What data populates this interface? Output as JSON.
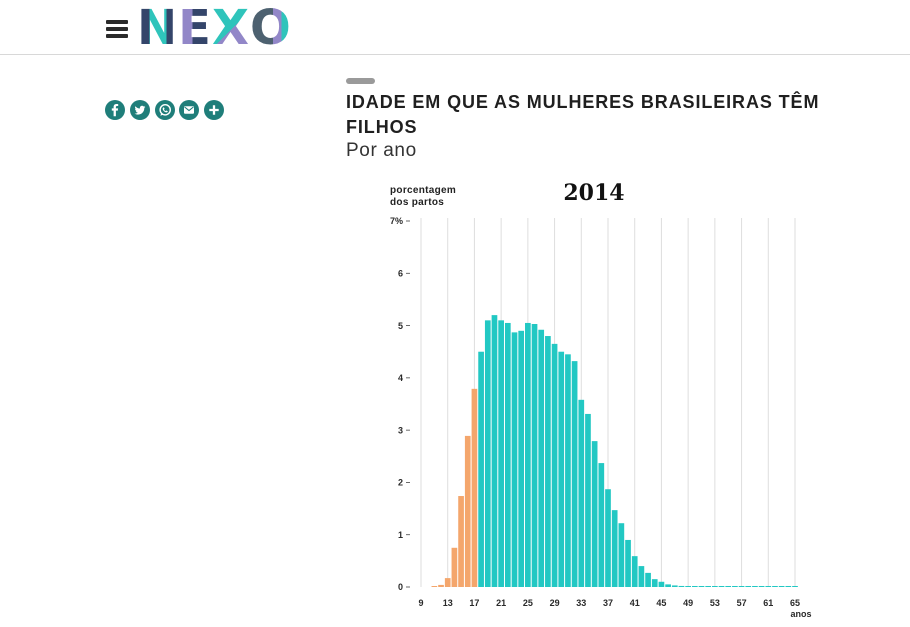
{
  "theme": {
    "share_button": "#1f7e7a",
    "tag": "#9a9a9a",
    "logo_navy": "#34456a",
    "logo_teal": "#2fc4bb",
    "logo_purple": "#9287c8",
    "logo_slate": "#4d6170",
    "menu_icon": "#2b2b2b",
    "divider": "#d8d8d8"
  },
  "header": {
    "menu_icon": "hamburger-menu-icon",
    "logo_letters": [
      "N",
      "E",
      "X",
      "O"
    ]
  },
  "share": {
    "buttons": [
      {
        "icon": "facebook-icon"
      },
      {
        "icon": "twitter-icon"
      },
      {
        "icon": "whatsapp-icon"
      },
      {
        "icon": "email-icon"
      },
      {
        "icon": "plus-icon"
      }
    ]
  },
  "article": {
    "title": "IDADE EM QUE AS MULHERES BRASILEIRAS TÊM FILHOS",
    "subtitle": "Por ano"
  },
  "chart_data": {
    "type": "bar",
    "title": "2014",
    "ylabel": [
      "porcentagem",
      "dos partos"
    ],
    "xlabel": "anos",
    "ylim": [
      0,
      7
    ],
    "xlim": [
      9,
      65
    ],
    "y_ticks": [
      0,
      1,
      2,
      3,
      4,
      5,
      6,
      7
    ],
    "y_tick_labels": [
      "0",
      "1",
      "2",
      "3",
      "4",
      "5",
      "6",
      "7%"
    ],
    "x_ticks": [
      9,
      13,
      17,
      21,
      25,
      29,
      33,
      37,
      41,
      45,
      49,
      53,
      57,
      61,
      65
    ],
    "grid": "vertical",
    "series": [
      {
        "color": "#f4a66c",
        "x": [
          11,
          12,
          13,
          14,
          15,
          16,
          17
        ],
        "values": [
          0.01,
          0.04,
          0.17,
          0.75,
          1.74,
          2.89,
          3.79
        ]
      },
      {
        "color": "#22c8c3",
        "x": [
          18,
          19,
          20,
          21,
          22,
          23,
          24,
          25,
          26,
          27,
          28,
          29,
          30,
          31,
          32,
          33,
          34,
          35,
          36,
          37,
          38,
          39,
          40,
          41,
          42,
          43,
          44,
          45,
          46,
          47,
          48,
          49,
          50,
          51,
          52,
          53,
          54,
          55,
          56,
          57,
          58,
          59,
          60,
          61,
          62,
          63,
          64,
          65
        ],
        "values": [
          4.5,
          5.1,
          5.2,
          5.1,
          5.05,
          4.87,
          4.9,
          5.05,
          5.03,
          4.92,
          4.8,
          4.65,
          4.5,
          4.45,
          4.32,
          3.58,
          3.31,
          2.79,
          2.37,
          1.87,
          1.47,
          1.22,
          0.9,
          0.59,
          0.4,
          0.27,
          0.15,
          0.1,
          0.05,
          0.03,
          0.02,
          0.01,
          0.01,
          0.01,
          0.01,
          0.01,
          0.01,
          0.01,
          0.01,
          0.01,
          0.01,
          0.01,
          0.01,
          0.01,
          0.01,
          0.01,
          0.01,
          0.01
        ]
      }
    ]
  }
}
